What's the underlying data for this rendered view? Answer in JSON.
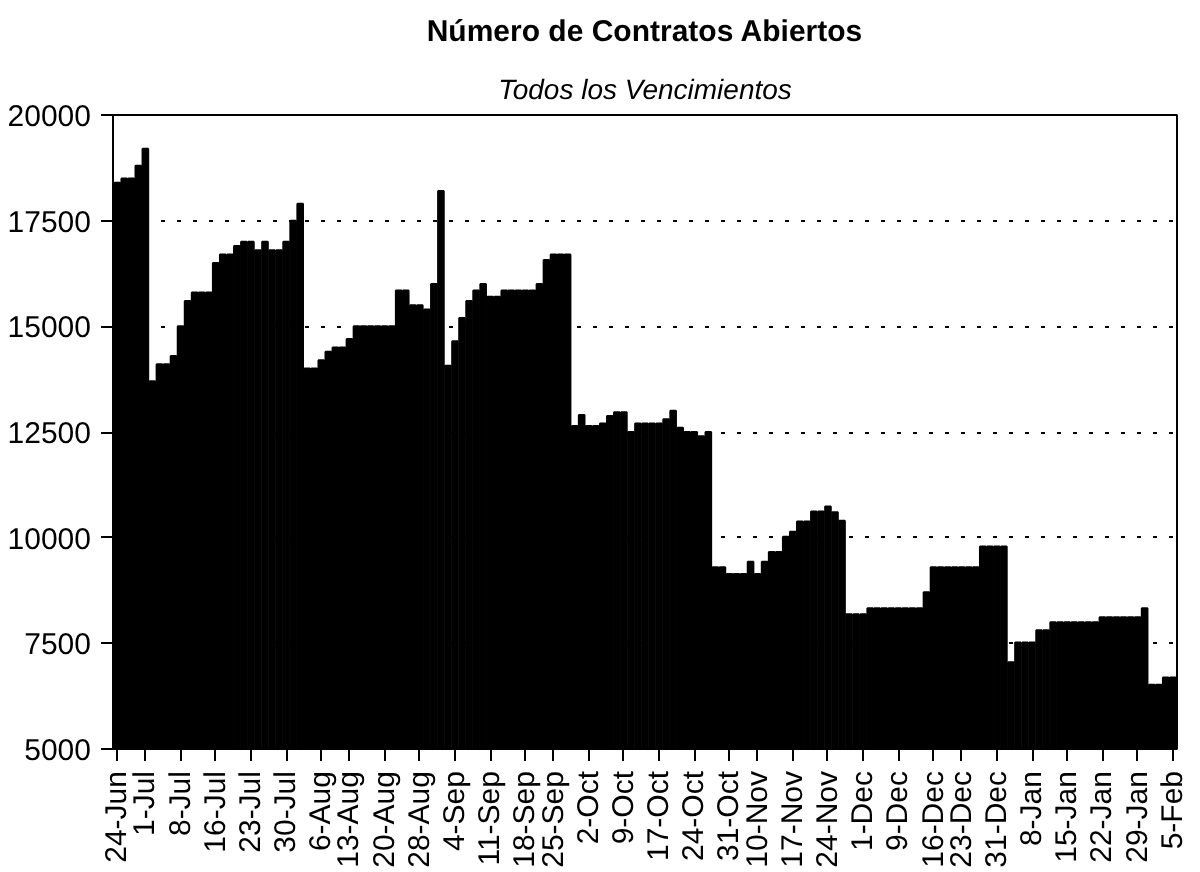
{
  "chart_data": {
    "type": "bar",
    "title": "Número de Contratos Abiertos",
    "subtitle": "Todos los Vencimientos",
    "categories": [
      "24-Jun",
      null,
      null,
      null,
      "1-Jul",
      null,
      null,
      null,
      null,
      "8-Jul",
      null,
      null,
      null,
      null,
      "16-Jul",
      null,
      null,
      null,
      null,
      "23-Jul",
      null,
      null,
      null,
      null,
      "30-Jul",
      null,
      null,
      null,
      null,
      "6-Aug",
      null,
      null,
      null,
      "13-Aug",
      null,
      null,
      null,
      null,
      "20-Aug",
      null,
      null,
      null,
      null,
      "28-Aug",
      null,
      null,
      null,
      null,
      "4-Sep",
      null,
      null,
      null,
      null,
      "11-Sep",
      null,
      null,
      null,
      null,
      "18-Sep",
      null,
      null,
      null,
      "25-Sep",
      null,
      null,
      null,
      null,
      "2-Oct",
      null,
      null,
      null,
      null,
      "9-Oct",
      null,
      null,
      null,
      null,
      "17-Oct",
      null,
      null,
      null,
      null,
      "24-Oct",
      null,
      null,
      null,
      null,
      "31-Oct",
      null,
      null,
      null,
      "10-Nov",
      null,
      null,
      null,
      null,
      "17-Nov",
      null,
      null,
      null,
      null,
      "24-Nov",
      null,
      null,
      null,
      null,
      "1-Dec",
      null,
      null,
      null,
      null,
      "9-Dec",
      null,
      null,
      null,
      null,
      "16-Dec",
      null,
      null,
      null,
      "23-Dec",
      null,
      null,
      null,
      null,
      "31-Dec",
      null,
      null,
      null,
      null,
      "8-Jan",
      null,
      null,
      null,
      null,
      "15-Jan",
      null,
      null,
      null,
      null,
      "22-Jan",
      null,
      null,
      null,
      null,
      "29-Jan",
      null,
      null,
      null,
      null,
      "5-Feb"
    ],
    "values": [
      18400,
      18500,
      18500,
      18800,
      19200,
      13700,
      14100,
      14100,
      14300,
      15000,
      15600,
      15800,
      15800,
      15800,
      16500,
      16700,
      16700,
      16900,
      17000,
      17000,
      16800,
      17000,
      16800,
      16800,
      17000,
      17500,
      17900,
      14000,
      14000,
      14200,
      14400,
      14500,
      14500,
      14700,
      15000,
      15000,
      15000,
      15000,
      15000,
      15000,
      15850,
      15850,
      15500,
      15500,
      15400,
      16000,
      18200,
      14070,
      14650,
      15200,
      15600,
      15850,
      16000,
      15700,
      15700,
      15850,
      15850,
      15850,
      15850,
      15850,
      16000,
      16570,
      16700,
      16700,
      16700,
      12640,
      12900,
      12640,
      12640,
      12700,
      12880,
      12970,
      12970,
      12500,
      12700,
      12700,
      12700,
      12700,
      12800,
      13000,
      12600,
      12500,
      12500,
      12400,
      12500,
      9300,
      9300,
      9140,
      9140,
      9140,
      9430,
      9140,
      9430,
      9660,
      9660,
      10020,
      10140,
      10380,
      10380,
      10620,
      10620,
      10740,
      10600,
      10400,
      8190,
      8190,
      8190,
      8330,
      8330,
      8330,
      8330,
      8330,
      8330,
      8330,
      8330,
      8710,
      9300,
      9300,
      9300,
      9300,
      9300,
      9300,
      9300,
      9790,
      9790,
      9790,
      9790,
      7050,
      7520,
      7520,
      7520,
      7810,
      7810,
      8000,
      8000,
      8000,
      8000,
      8000,
      8000,
      8000,
      8120,
      8120,
      8120,
      8120,
      8120,
      8120,
      8330,
      6520,
      6520,
      6690,
      6690
    ],
    "color": "#000000",
    "ylim": [
      5000,
      20000
    ],
    "yticks": [
      5000,
      7500,
      10000,
      12500,
      15000,
      17500,
      20000
    ],
    "grid": "y"
  }
}
